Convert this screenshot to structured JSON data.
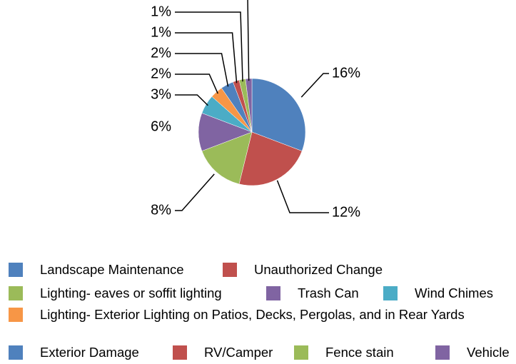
{
  "chart_data": {
    "type": "pie",
    "categories": [
      "Landscape Maintenance",
      "Unauthorized Change",
      "Lighting- eaves or soffit lighting",
      "Trash Can",
      "Wind Chimes",
      "Lighting- Exterior Lighting on Patios, Decks, Pergolas, and in Rear Yards",
      "Exterior Damage",
      "RV/Camper",
      "Fence stain",
      "Vehicle"
    ],
    "values": [
      16,
      12,
      8,
      6,
      3,
      2,
      2,
      1,
      1,
      1
    ],
    "value_labels": [
      "16%",
      "12%",
      "8%",
      "6%",
      "3%",
      "2%",
      "2%",
      "1%",
      "1%",
      null
    ],
    "colors": [
      "#4f81bd",
      "#c0504d",
      "#9bbb59",
      "#8064a2",
      "#4bacc6",
      "#f79646",
      "#4f81bd",
      "#c0504d",
      "#9bbb59",
      "#8064a2"
    ],
    "legend": "bottom"
  }
}
